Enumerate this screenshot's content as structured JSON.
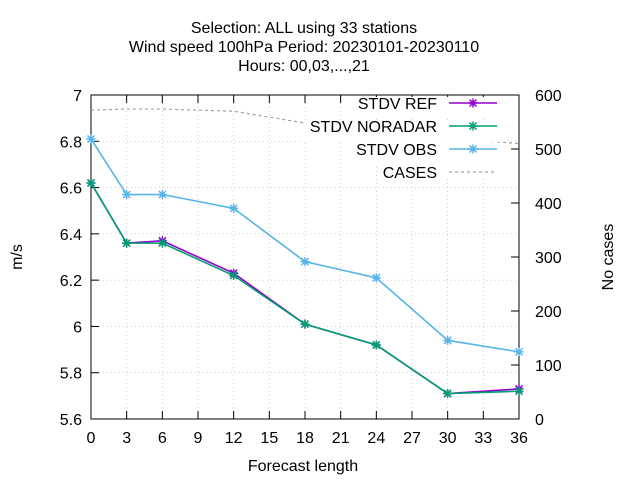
{
  "title_lines": [
    "Selection: ALL using    33 stations",
    "Wind speed 100hPa   Period: 20230101-20230110",
    "Hours:  00,03,...,21"
  ],
  "chart_data": {
    "type": "line",
    "title": "Selection: ALL using    33 stations / Wind speed 100hPa   Period: 20230101-20230110 / Hours:  00,03,...,21",
    "xlabel": "Forecast length",
    "ylabel": "m/s",
    "y2label": "No cases",
    "xlim": [
      0,
      36
    ],
    "ylim": [
      5.6,
      7.0
    ],
    "y2lim": [
      0,
      600
    ],
    "grid": true,
    "legend_position": "top-right",
    "x_ticks": [
      "0",
      "3",
      "6",
      "9",
      "12",
      "15",
      "18",
      "21",
      "24",
      "27",
      "30",
      "33",
      "36"
    ],
    "x_tick_values": [
      0,
      3,
      6,
      9,
      12,
      15,
      18,
      21,
      24,
      27,
      30,
      33,
      36
    ],
    "y_ticks": [
      "5.6",
      "5.8",
      "6",
      "6.2",
      "6.4",
      "6.6",
      "6.8",
      "7"
    ],
    "y_tick_values": [
      5.6,
      5.8,
      6.0,
      6.2,
      6.4,
      6.6,
      6.8,
      7.0
    ],
    "y2_ticks": [
      "0",
      "100",
      "200",
      "300",
      "400",
      "500",
      "600"
    ],
    "y2_tick_values": [
      0,
      100,
      200,
      300,
      400,
      500,
      600
    ],
    "x": [
      0,
      3,
      6,
      12,
      18,
      24,
      30,
      36
    ],
    "series": [
      {
        "name": "STDV REF",
        "axis": "y",
        "color": "#9400d3",
        "marker": "x-cross",
        "dash": "",
        "values": [
          6.62,
          6.36,
          6.37,
          6.23,
          6.01,
          5.92,
          5.71,
          5.73
        ]
      },
      {
        "name": "STDV NORADAR",
        "axis": "y",
        "color": "#009e73",
        "marker": "x-cross",
        "dash": "",
        "values": [
          6.62,
          6.36,
          6.36,
          6.22,
          6.01,
          5.92,
          5.71,
          5.72
        ]
      },
      {
        "name": "STDV OBS",
        "axis": "y",
        "color": "#56b4e9",
        "marker": "x-cross",
        "dash": "",
        "values": [
          6.81,
          6.57,
          6.57,
          6.51,
          6.28,
          6.21,
          5.94,
          5.89
        ]
      },
      {
        "name": "CASES",
        "axis": "y2",
        "color": "#a0a0a0",
        "marker": "none",
        "dash": "3,3",
        "values": [
          572,
          574,
          574,
          570,
          548,
          535,
          520,
          510
        ]
      }
    ]
  }
}
